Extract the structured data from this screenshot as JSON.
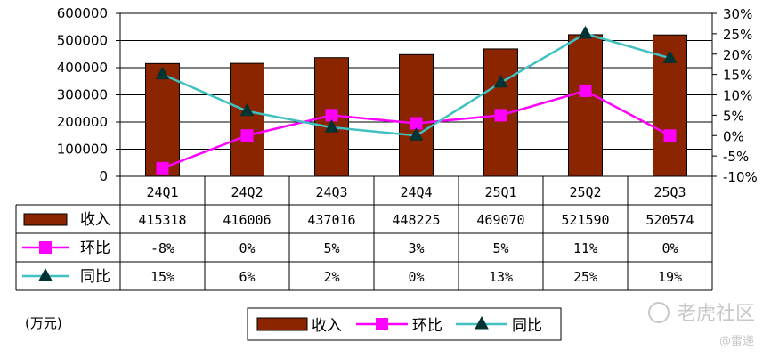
{
  "chart_data": {
    "type": "bar+line",
    "categories": [
      "24Q1",
      "24Q2",
      "24Q3",
      "24Q4",
      "25Q1",
      "25Q2",
      "25Q3"
    ],
    "series": [
      {
        "name": "收入",
        "type": "bar",
        "axis": "left",
        "color": "#8B2500",
        "values": [
          415318,
          416006,
          437016,
          448225,
          469070,
          521590,
          520574
        ]
      },
      {
        "name": "环比",
        "type": "line",
        "axis": "right",
        "color": "#FF00FF",
        "marker": "square",
        "values": [
          -8,
          0,
          5,
          3,
          5,
          11,
          0
        ]
      },
      {
        "name": "同比",
        "type": "line",
        "axis": "right",
        "color": "#40C0C0",
        "marker": "triangle",
        "values": [
          15,
          6,
          2,
          0,
          13,
          25,
          19
        ]
      }
    ],
    "table_rows": [
      {
        "label": "收入",
        "cells": [
          "415318",
          "416006",
          "437016",
          "448225",
          "469070",
          "521590",
          "520574"
        ]
      },
      {
        "label": "环比",
        "cells": [
          "-8%",
          "0%",
          "5%",
          "3%",
          "5%",
          "11%",
          "0%"
        ]
      },
      {
        "label": "同比",
        "cells": [
          "15%",
          "6%",
          "2%",
          "0%",
          "13%",
          "25%",
          "19%"
        ]
      }
    ],
    "y_left": {
      "ylim": [
        0,
        600000
      ],
      "ticks": [
        "600000",
        "500000",
        "400000",
        "300000",
        "200000",
        "100000",
        "0"
      ]
    },
    "y_right": {
      "ylim": [
        -10,
        30
      ],
      "ticks": [
        "30%",
        "25%",
        "20%",
        "15%",
        "10%",
        "5%",
        "0%",
        "-5%",
        "-10%"
      ]
    },
    "legend": {
      "position": "bottom",
      "items": [
        "收入",
        "环比",
        "同比"
      ]
    },
    "unit_note": "(万元)",
    "grid": "horizontal"
  },
  "watermark": {
    "main": "老虎社区",
    "sub": "@雷递"
  }
}
